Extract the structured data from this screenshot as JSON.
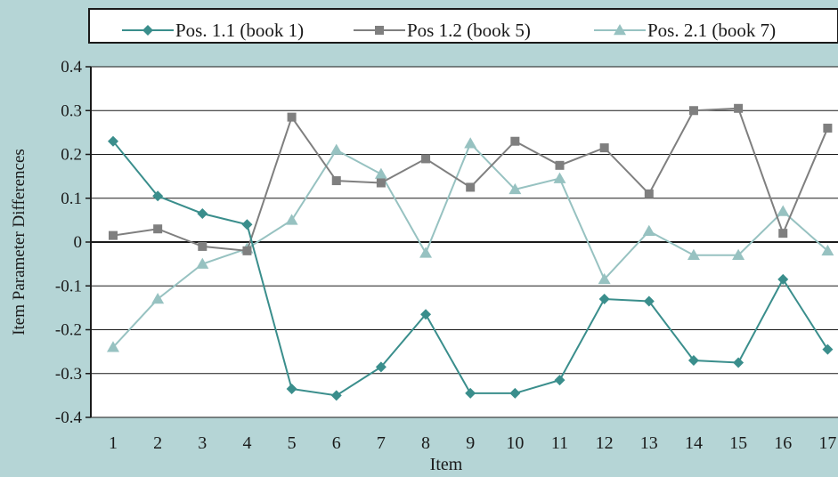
{
  "chart_data": {
    "type": "line",
    "xlabel": "Item",
    "ylabel": "Item Parameter Differences",
    "categories": [
      "1",
      "2",
      "3",
      "4",
      "5",
      "6",
      "7",
      "8",
      "9",
      "10",
      "11",
      "12",
      "13",
      "14",
      "15",
      "16",
      "17"
    ],
    "ylim": [
      -0.4,
      0.4
    ],
    "yticks": [
      {
        "value": 0.4,
        "label": "0.4"
      },
      {
        "value": 0.3,
        "label": "0.3"
      },
      {
        "value": 0.2,
        "label": "0.2"
      },
      {
        "value": 0.1,
        "label": "0.1"
      },
      {
        "value": 0,
        "label": "0"
      },
      {
        "value": -0.1,
        "label": "-0.1"
      },
      {
        "value": -0.2,
        "label": "-0.2"
      },
      {
        "value": -0.3,
        "label": "-0.3"
      },
      {
        "value": -0.4,
        "label": "-0.4"
      }
    ],
    "grid": "horizontal",
    "legend_position": "top",
    "series": [
      {
        "name": "Pos. 1.1 (book 1)",
        "marker": "diamond",
        "color": "#3a8e8c",
        "values": [
          0.23,
          0.105,
          0.065,
          0.04,
          -0.335,
          -0.35,
          -0.285,
          -0.165,
          -0.345,
          -0.345,
          -0.315,
          -0.13,
          -0.135,
          -0.27,
          -0.275,
          -0.085,
          -0.245
        ]
      },
      {
        "name": "Pos 1.2 (book 5)",
        "marker": "square",
        "color": "#7f7f7f",
        "values": [
          0.015,
          0.03,
          -0.01,
          -0.02,
          0.285,
          0.14,
          0.135,
          0.19,
          0.125,
          0.23,
          0.175,
          0.215,
          0.11,
          0.3,
          0.305,
          0.02,
          0.26
        ]
      },
      {
        "name": "Pos. 2.1 (book 7)",
        "marker": "triangle",
        "color": "#97c2c1",
        "values": [
          -0.24,
          -0.13,
          -0.05,
          -0.015,
          0.05,
          0.21,
          0.155,
          -0.025,
          0.225,
          0.12,
          0.145,
          -0.085,
          0.025,
          -0.03,
          -0.03,
          0.07,
          -0.02
        ]
      }
    ]
  }
}
